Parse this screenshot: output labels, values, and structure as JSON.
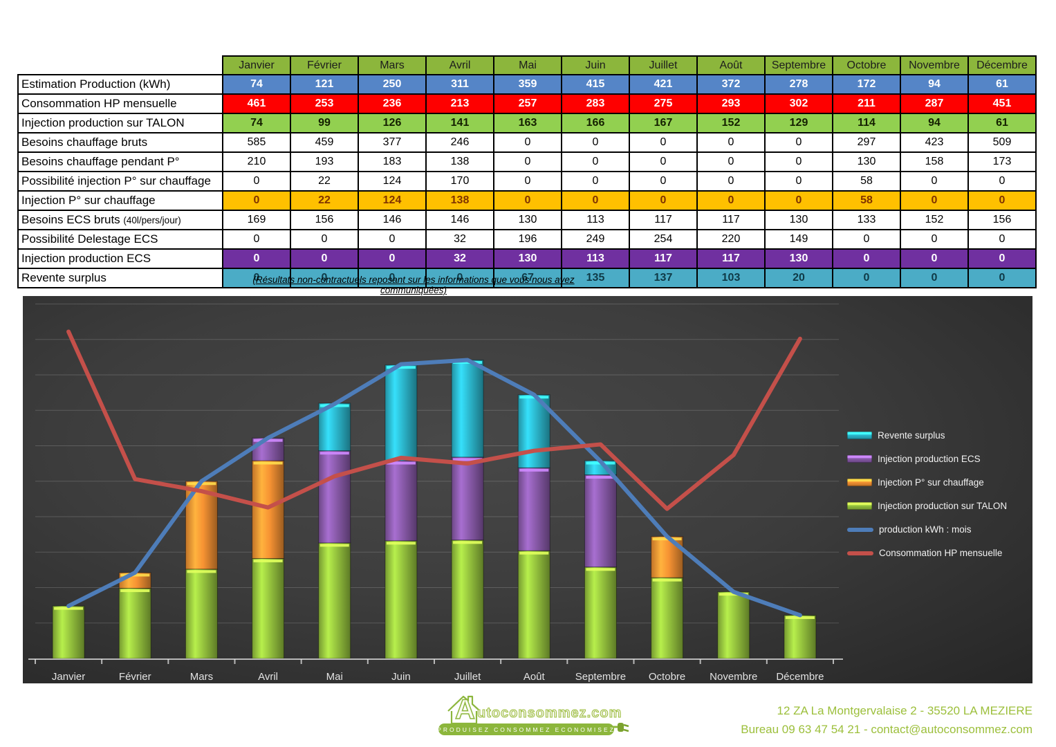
{
  "table": {
    "months": [
      "Janvier",
      "Février",
      "Mars",
      "Avril",
      "Mai",
      "Juin",
      "Juillet",
      "Août",
      "Septembre",
      "Octobre",
      "Novembre",
      "Décembre"
    ],
    "rows": [
      {
        "label": "Estimation Production (kWh)",
        "label_small": "",
        "style": "blue",
        "values": [
          74,
          121,
          250,
          311,
          359,
          415,
          421,
          372,
          278,
          172,
          94,
          61
        ]
      },
      {
        "label": "Consommation HP mensuelle",
        "label_small": "",
        "style": "red",
        "values": [
          461,
          253,
          236,
          213,
          257,
          283,
          275,
          293,
          302,
          211,
          287,
          451
        ]
      },
      {
        "label": "Injection production sur TALON",
        "label_small": "",
        "style": "green",
        "values": [
          74,
          99,
          126,
          141,
          163,
          166,
          167,
          152,
          129,
          114,
          94,
          61
        ]
      },
      {
        "label": "Besoins chauffage bruts",
        "label_small": "",
        "style": "plain",
        "values": [
          585,
          459,
          377,
          246,
          0,
          0,
          0,
          0,
          0,
          297,
          423,
          509
        ]
      },
      {
        "label": "Besoins chauffage pendant P°",
        "label_small": "",
        "style": "plain",
        "values": [
          210,
          193,
          183,
          138,
          0,
          0,
          0,
          0,
          0,
          130,
          158,
          173
        ]
      },
      {
        "label": "Possibilité injection P° sur chauffage",
        "label_small": "",
        "style": "plain",
        "values": [
          0,
          22,
          124,
          170,
          0,
          0,
          0,
          0,
          0,
          58,
          0,
          0
        ]
      },
      {
        "label": "Injection P° sur chauffage",
        "label_small": "",
        "style": "orange",
        "values": [
          0,
          22,
          124,
          138,
          0,
          0,
          0,
          0,
          0,
          58,
          0,
          0
        ]
      },
      {
        "label": "Besoins ECS bruts ",
        "label_small": "(40l/pers/jour)",
        "style": "plain",
        "values": [
          169,
          156,
          146,
          146,
          130,
          113,
          117,
          117,
          130,
          133,
          152,
          156
        ]
      },
      {
        "label": "Possibilité Delestage ECS",
        "label_small": "",
        "style": "plain",
        "values": [
          0,
          0,
          0,
          32,
          196,
          249,
          254,
          220,
          149,
          0,
          0,
          0
        ]
      },
      {
        "label": "Injection production ECS",
        "label_small": "",
        "style": "purple",
        "values": [
          0,
          0,
          0,
          32,
          130,
          113,
          117,
          117,
          130,
          0,
          0,
          0
        ]
      },
      {
        "label": "Revente surplus",
        "label_small": "",
        "style": "cyan",
        "values": [
          0,
          0,
          0,
          0,
          67,
          135,
          137,
          103,
          20,
          0,
          0,
          0
        ]
      }
    ],
    "row_colors": {
      "blue": "#5585C7",
      "red": "#FE0000",
      "green": "#92D050",
      "orange": "#FFC000",
      "purple": "#7030A0",
      "cyan": "#4BACC6",
      "header_green": "#8CB63C"
    },
    "note": "(Résultats non-contractuels reposant sur les informations que vous nous avez communiquées)"
  },
  "chart_data": {
    "type": "bar",
    "subtype": "stacked-bars-with-lines",
    "categories": [
      "Janvier",
      "Février",
      "Mars",
      "Avril",
      "Mai",
      "Juin",
      "Juillet",
      "Août",
      "Septembre",
      "Octobre",
      "Novembre",
      "Décembre"
    ],
    "bar_series": [
      {
        "name": "Injection production sur TALON",
        "color": "#96C43E",
        "values": [
          74,
          99,
          126,
          141,
          163,
          166,
          167,
          152,
          129,
          114,
          94,
          61
        ]
      },
      {
        "name": "Injection P° sur chauffage",
        "color": "#F79333",
        "values": [
          0,
          22,
          124,
          138,
          0,
          0,
          0,
          0,
          0,
          58,
          0,
          0
        ]
      },
      {
        "name": "Injection production ECS",
        "color": "#8A5BAB",
        "values": [
          0,
          0,
          0,
          32,
          130,
          113,
          117,
          117,
          130,
          0,
          0,
          0
        ]
      },
      {
        "name": "Revente surplus",
        "color": "#2CB8CE",
        "values": [
          0,
          0,
          0,
          0,
          67,
          135,
          137,
          103,
          20,
          0,
          0,
          0
        ]
      }
    ],
    "line_series": [
      {
        "name": "production kWh : mois",
        "color": "#4E7DB9",
        "values": [
          74,
          121,
          250,
          311,
          359,
          415,
          421,
          372,
          278,
          172,
          94,
          61
        ]
      },
      {
        "name": "Consommation HP mensuelle",
        "color": "#C4504A",
        "values": [
          461,
          253,
          236,
          213,
          257,
          283,
          275,
          293,
          302,
          211,
          287,
          451
        ]
      }
    ],
    "legend": [
      {
        "name": "Revente surplus",
        "kind": "bar",
        "color": "#2CB8CE"
      },
      {
        "name": "Injection production ECS",
        "kind": "bar",
        "color": "#8A5BAB"
      },
      {
        "name": "Injection P° sur chauffage",
        "kind": "bar",
        "color": "#F79333"
      },
      {
        "name": "Injection production sur TALON",
        "kind": "bar",
        "color": "#96C43E"
      },
      {
        "name": "production kWh : mois",
        "kind": "line",
        "color": "#4E7DB9"
      },
      {
        "name": "Consommation HP mensuelle",
        "kind": "line",
        "color": "#C4504A"
      }
    ],
    "title": "",
    "xlabel": "",
    "ylabel": "",
    "ylim": [
      0,
      510
    ],
    "gridline_step": 50,
    "grid": true,
    "legend_position": "right",
    "background": "dark"
  },
  "footer": {
    "brand_first_letter": "A",
    "brand_rest": "utoconsommez.com",
    "tagline": "PRODUISEZ CONSOMMEZ ECONOMISEZ",
    "address": "12 ZA La Montgervalaise 2 - 35520 LA MEZIERE",
    "phone_line": "Bureau 09 63 47 54 21 - contact@autoconsommez.com",
    "brand_color": "#9CBF3B"
  }
}
